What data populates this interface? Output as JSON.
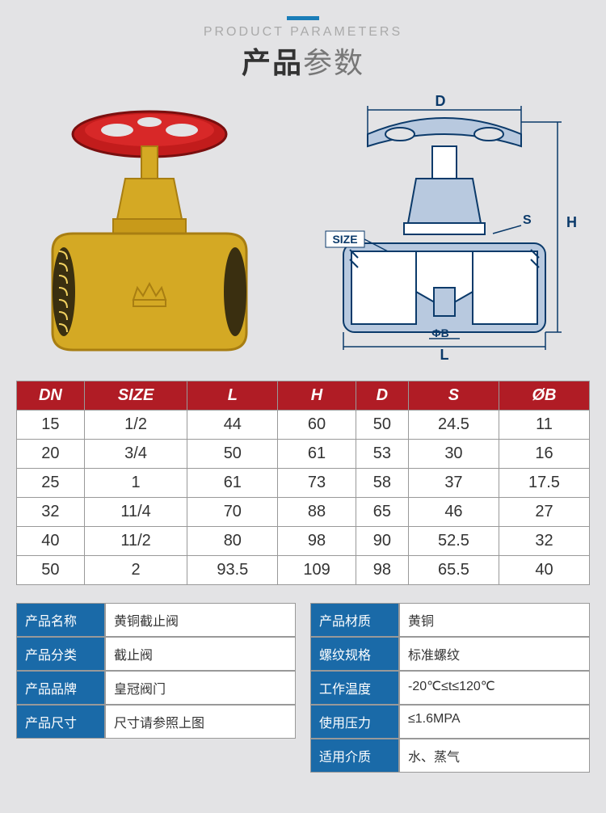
{
  "header": {
    "en": "PRODUCT PARAMETERS",
    "cn_bold": "产品",
    "cn_thin": "参数",
    "accent_color": "#1a7db8"
  },
  "diagram_labels": {
    "D": "D",
    "H": "H",
    "S": "S",
    "L": "L",
    "SIZE": "SIZE",
    "phiB": "ΦB"
  },
  "spec_table": {
    "type": "table",
    "header_bg": "#b01c25",
    "header_fg": "#ffffff",
    "cell_bg": "#ffffff",
    "border_color": "#999999",
    "fontsize": 20,
    "columns": [
      "DN",
      "SIZE",
      "L",
      "H",
      "D",
      "S",
      "ØB"
    ],
    "rows": [
      [
        "15",
        "1/2",
        "44",
        "60",
        "50",
        "24.5",
        "11"
      ],
      [
        "20",
        "3/4",
        "50",
        "61",
        "53",
        "30",
        "16"
      ],
      [
        "25",
        "1",
        "61",
        "73",
        "58",
        "37",
        "17.5"
      ],
      [
        "32",
        "11/4",
        "70",
        "88",
        "65",
        "46",
        "27"
      ],
      [
        "40",
        "11/2",
        "80",
        "98",
        "90",
        "52.5",
        "32"
      ],
      [
        "50",
        "2",
        "93.5",
        "109",
        "98",
        "65.5",
        "40"
      ]
    ]
  },
  "info": {
    "label_bg": "#1a6aa8",
    "label_fg": "#ffffff",
    "value_bg": "#ffffff",
    "fontsize": 16,
    "left": [
      {
        "label": "产品名称",
        "value": "黄铜截止阀"
      },
      {
        "label": "产品分类",
        "value": "截止阀"
      },
      {
        "label": "产品品牌",
        "value": "皇冠阀门"
      },
      {
        "label": "产品尺寸",
        "value": "尺寸请参照上图"
      }
    ],
    "right": [
      {
        "label": "产品材质",
        "value": "黄铜"
      },
      {
        "label": "螺纹规格",
        "value": "标准螺纹"
      },
      {
        "label": "工作温度",
        "value": "-20℃≤t≤120℃"
      },
      {
        "label": "使用压力",
        "value": "≤1.6MPA"
      },
      {
        "label": "适用介质",
        "value": "水、蒸气"
      }
    ]
  },
  "colors": {
    "page_bg": "#e3e3e5",
    "handwheel": "#c21c1c",
    "brass": "#d4a924",
    "brass_dark": "#a87e12",
    "diagram_stroke": "#0b3a6a",
    "diagram_fill": "#b8c9df"
  }
}
